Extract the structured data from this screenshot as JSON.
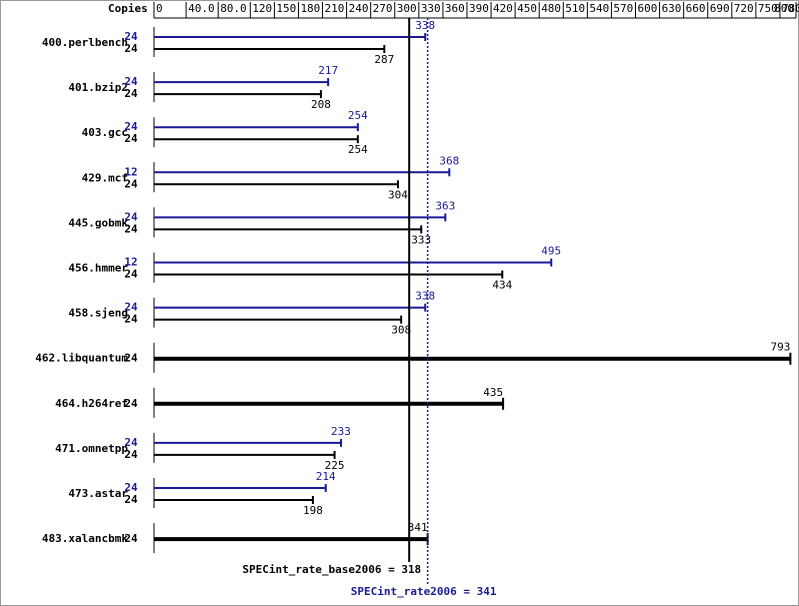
{
  "chart_data": {
    "type": "bar",
    "orientation": "horizontal",
    "copies_header": "Copies",
    "categories": [
      "400.perlbench",
      "401.bzip2",
      "403.gcc",
      "429.mcf",
      "445.gobmk",
      "456.hmmer",
      "458.sjeng",
      "462.libquantum",
      "464.h264ref",
      "471.omnetpp",
      "473.astar",
      "483.xalancbmk"
    ],
    "series": [
      {
        "color": "#191996",
        "copies": [
          24,
          24,
          24,
          12,
          24,
          12,
          24,
          null,
          null,
          24,
          24,
          null
        ],
        "values": [
          338,
          217,
          254,
          368,
          363,
          495,
          338,
          null,
          null,
          233,
          214,
          null
        ]
      },
      {
        "color": "#000000",
        "copies": [
          24,
          24,
          24,
          24,
          24,
          24,
          24,
          24,
          24,
          24,
          24,
          24
        ],
        "values": [
          287,
          208,
          254,
          304,
          333,
          434,
          308,
          793,
          435,
          225,
          198,
          341
        ]
      }
    ],
    "xlim": [
      0,
      800
    ],
    "xticks": [
      0,
      {
        "value": 40,
        "label": "40.0"
      },
      {
        "value": 80,
        "label": "80.0"
      },
      120,
      150,
      180,
      210,
      240,
      270,
      300,
      330,
      360,
      390,
      420,
      450,
      480,
      510,
      540,
      570,
      600,
      630,
      660,
      690,
      720,
      750,
      780,
      800
    ],
    "reference_lines": [
      {
        "label": "SPECint_rate_base2006 = 318",
        "value": 318,
        "color": "#000000",
        "style": "solid"
      },
      {
        "label": "SPECint_rate2006 = 341",
        "value": 341,
        "color": "#191996",
        "style": "dotted"
      }
    ]
  }
}
